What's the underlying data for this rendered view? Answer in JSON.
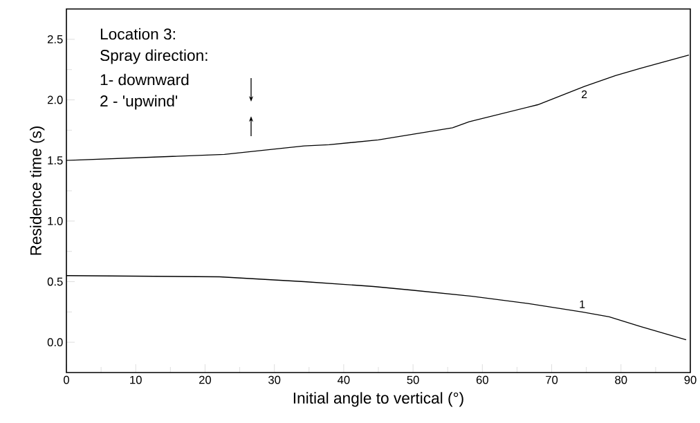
{
  "chart_data": {
    "type": "line",
    "xlabel": "Initial angle to vertical (°)",
    "ylabel": "Residence time (s)",
    "xlim": [
      0,
      90
    ],
    "ylim": [
      -0.25,
      2.75
    ],
    "xticks": [
      0,
      10,
      20,
      30,
      40,
      50,
      60,
      70,
      80,
      90
    ],
    "yticks": [
      {
        "value": 0,
        "label": "0.0"
      },
      0.5,
      {
        "value": 1,
        "label": "1.0"
      },
      1.5,
      {
        "value": 2,
        "label": "2.0"
      },
      2.5
    ],
    "marker": "none",
    "line_style": "solid",
    "series": [
      {
        "color": "#000000",
        "x": [
          0,
          22.1,
          34.3,
          41.9,
          44.3,
          49.8,
          58.5,
          66.6,
          74.4,
          78.3,
          82.8,
          89.4
        ],
        "values": [
          0.55,
          0.54,
          0.5,
          0.47,
          0.46,
          0.43,
          0.38,
          0.32,
          0.25,
          0.21,
          0.13,
          0.02
        ]
      },
      {
        "color": "#000000",
        "x": [
          0,
          22.8,
          34.3,
          37.9,
          45,
          55.7,
          58.1,
          68,
          74.7,
          79.2,
          82.8,
          89.8
        ],
        "values": [
          1.5,
          1.55,
          1.62,
          1.63,
          1.67,
          1.77,
          1.82,
          1.96,
          2.11,
          2.2,
          2.26,
          2.37
        ]
      }
    ],
    "annotations": [
      "Location 3:",
      "Spray direction:",
      "1- downward",
      "2 - 'upwind'",
      "1",
      "2"
    ]
  }
}
